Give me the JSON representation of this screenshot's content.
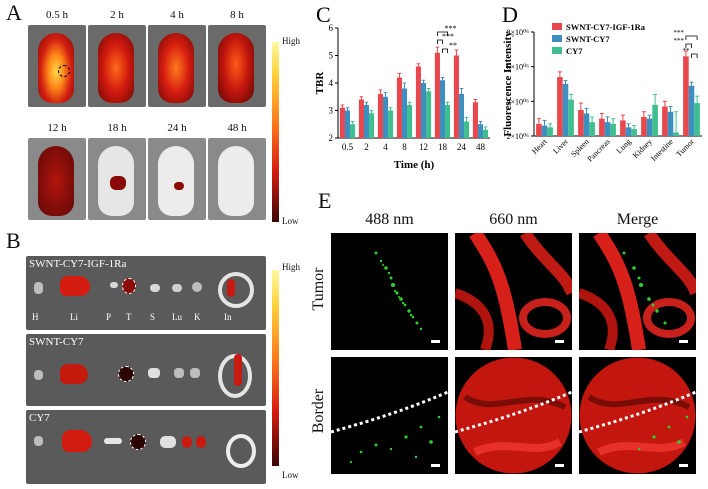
{
  "panels": {
    "A": {
      "letter": "A",
      "timepoints": [
        "0.5 h",
        "2 h",
        "4 h",
        "8 h",
        "12 h",
        "18 h",
        "24 h",
        "48 h"
      ],
      "colorbar": {
        "high": "High",
        "low": "Low"
      }
    },
    "B": {
      "letter": "B",
      "groups": [
        {
          "title": "SWNT-CY7-IGF-1Ra",
          "organ_labels": [
            "H",
            "Li",
            "P",
            "T",
            "S",
            "Lu",
            "K",
            "In"
          ]
        },
        {
          "title": "SWNT-CY7"
        },
        {
          "title": "CY7"
        }
      ],
      "colorbar": {
        "high": "High",
        "low": "Low"
      }
    },
    "E": {
      "letter": "E",
      "columns": [
        "488 nm",
        "660 nm",
        "Merge"
      ],
      "rows": [
        "Tumor",
        "Border"
      ]
    }
  },
  "colors": {
    "swnt_cy7_igf": "#e8474e",
    "swnt_cy7": "#3c8fbf",
    "cy7": "#3fbf8f"
  },
  "chart_data": [
    {
      "panel": "C",
      "type": "bar",
      "xlabel": "Time (h)",
      "ylabel": "TBR",
      "ylim": [
        2,
        6
      ],
      "yticks": [
        2,
        3,
        4,
        5,
        6
      ],
      "categories": [
        "0.5",
        "2",
        "4",
        "8",
        "12",
        "18",
        "24",
        "48"
      ],
      "series": [
        {
          "color": "#e8474e",
          "values": [
            3.1,
            3.4,
            3.6,
            4.2,
            4.6,
            5.1,
            5.0,
            3.3
          ],
          "errors": [
            0.1,
            0.1,
            0.15,
            0.15,
            0.1,
            0.2,
            0.2,
            0.1
          ]
        },
        {
          "color": "#3c8fbf",
          "values": [
            3.0,
            3.2,
            3.5,
            3.8,
            4.0,
            4.1,
            3.6,
            2.5
          ],
          "errors": [
            0.1,
            0.1,
            0.15,
            0.2,
            0.1,
            0.1,
            0.2,
            0.1
          ]
        },
        {
          "color": "#3fbf8f",
          "values": [
            2.5,
            2.9,
            3.0,
            3.2,
            3.7,
            3.2,
            2.6,
            2.3
          ],
          "errors": [
            0.1,
            0.1,
            0.1,
            0.1,
            0.1,
            0.1,
            0.15,
            0.1
          ]
        }
      ],
      "annotations": [
        "***",
        "***",
        "**"
      ]
    },
    {
      "panel": "D",
      "type": "bar",
      "ylabel": "Fluorescence Intensity",
      "ylim": [
        2,
        8
      ],
      "yticks": [
        "2×10⁰⁶",
        "4×10⁰⁶",
        "6×10⁰⁶",
        "8×10⁰⁶"
      ],
      "ytick_values": [
        2,
        4,
        6,
        8
      ],
      "categories": [
        "Heart",
        "Liver",
        "Spleen",
        "Pancreas",
        "Lung",
        "Kidney",
        "Intestine",
        "Tumor"
      ],
      "series": [
        {
          "name": "SWNT-CY7-IGF-1Ra",
          "color": "#e8474e",
          "values": [
            2.7,
            5.4,
            3.5,
            3.0,
            2.9,
            3.1,
            3.7,
            6.6
          ],
          "errors": [
            0.3,
            0.3,
            0.4,
            0.3,
            0.3,
            0.3,
            0.3,
            0.3
          ]
        },
        {
          "name": "SWNT-CY7",
          "color": "#3c8fbf",
          "values": [
            2.6,
            5.0,
            3.3,
            2.8,
            2.5,
            3.0,
            3.4,
            4.9
          ],
          "errors": [
            0.3,
            0.2,
            0.3,
            0.3,
            0.2,
            0.2,
            0.3,
            0.2
          ]
        },
        {
          "name": "CY7",
          "color": "#3fbf8f",
          "values": [
            2.5,
            4.1,
            2.8,
            2.7,
            2.4,
            3.8,
            2.2,
            3.9
          ],
          "errors": [
            0.2,
            0.3,
            0.3,
            0.3,
            0.2,
            0.6,
            1.2,
            0.4
          ]
        }
      ],
      "annotations": [
        "***",
        "***",
        "**"
      ]
    }
  ]
}
